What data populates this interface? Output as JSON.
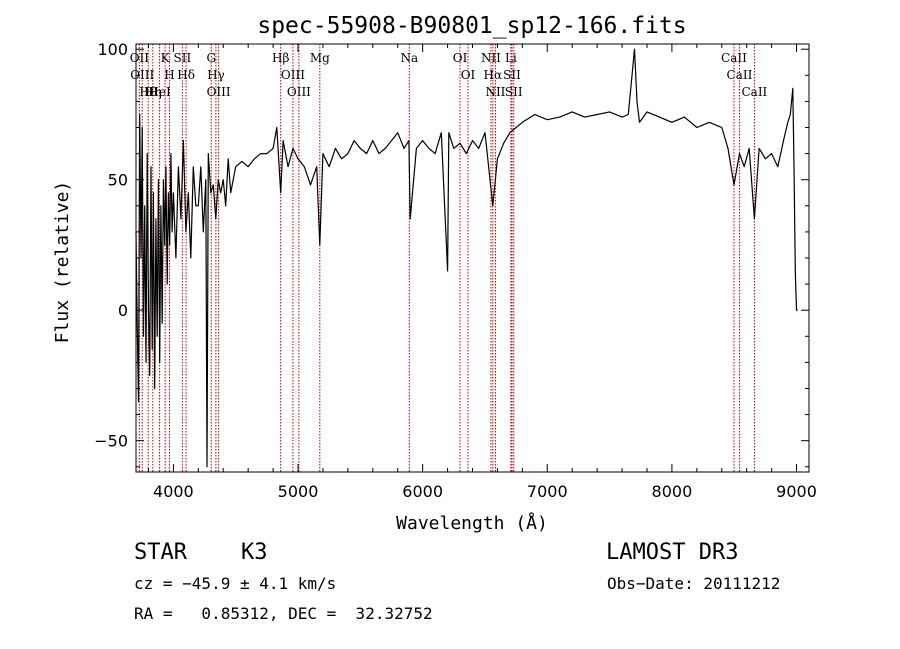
{
  "chart_data": {
    "type": "line",
    "title": "spec-55908-B90801_sp12-166.fits",
    "xlabel": "Wavelength (Å)",
    "ylabel": "Flux (relative)",
    "xlim": [
      3700,
      9100
    ],
    "ylim": [
      -62,
      102
    ],
    "xticks": [
      4000,
      5000,
      6000,
      7000,
      8000,
      9000
    ],
    "yticks": [
      -50,
      0,
      50,
      100
    ],
    "series": [
      {
        "name": "flux",
        "x": [
          3700,
          3710,
          3720,
          3730,
          3740,
          3750,
          3760,
          3770,
          3780,
          3790,
          3800,
          3810,
          3820,
          3830,
          3840,
          3850,
          3860,
          3870,
          3880,
          3890,
          3900,
          3910,
          3920,
          3930,
          3940,
          3950,
          3960,
          3970,
          3980,
          3990,
          4000,
          4020,
          4040,
          4060,
          4080,
          4100,
          4120,
          4140,
          4160,
          4180,
          4200,
          4220,
          4240,
          4260,
          4270,
          4280,
          4300,
          4320,
          4340,
          4360,
          4380,
          4400,
          4420,
          4440,
          4460,
          4480,
          4500,
          4550,
          4600,
          4650,
          4700,
          4750,
          4800,
          4830,
          4861,
          4880,
          4920,
          4960,
          5000,
          5050,
          5100,
          5150,
          5175,
          5200,
          5250,
          5300,
          5350,
          5400,
          5450,
          5500,
          5550,
          5600,
          5650,
          5700,
          5750,
          5800,
          5850,
          5890,
          5900,
          5950,
          6000,
          6050,
          6100,
          6150,
          6200,
          6210,
          6250,
          6300,
          6350,
          6400,
          6450,
          6500,
          6563,
          6600,
          6650,
          6700,
          6750,
          6800,
          6900,
          7000,
          7100,
          7200,
          7300,
          7400,
          7500,
          7600,
          7650,
          7700,
          7720,
          7740,
          7800,
          7900,
          8000,
          8100,
          8200,
          8300,
          8400,
          8450,
          8498,
          8542,
          8580,
          8620,
          8662,
          8700,
          8750,
          8800,
          8850,
          8900,
          8930,
          8950,
          8970,
          8980,
          8990,
          9000,
          9010
        ],
        "values": [
          30,
          -5,
          -35,
          75,
          20,
          70,
          -10,
          40,
          -20,
          60,
          0,
          -25,
          55,
          -15,
          45,
          -30,
          35,
          -10,
          50,
          -20,
          40,
          -5,
          50,
          25,
          55,
          10,
          45,
          25,
          60,
          30,
          45,
          20,
          55,
          35,
          65,
          30,
          45,
          20,
          55,
          40,
          40,
          55,
          30,
          50,
          -60,
          60,
          45,
          48,
          35,
          50,
          45,
          50,
          40,
          58,
          45,
          50,
          55,
          57,
          55,
          58,
          60,
          60,
          62,
          70,
          45,
          65,
          55,
          62,
          58,
          55,
          48,
          55,
          25,
          60,
          55,
          62,
          58,
          60,
          65,
          62,
          60,
          65,
          60,
          62,
          65,
          68,
          62,
          65,
          35,
          62,
          65,
          62,
          60,
          68,
          15,
          68,
          62,
          64,
          60,
          65,
          62,
          68,
          40,
          58,
          64,
          68,
          70,
          72,
          75,
          73,
          74,
          76,
          74,
          75,
          76,
          74,
          75,
          100,
          80,
          72,
          76,
          74,
          72,
          74,
          70,
          72,
          70,
          62,
          48,
          60,
          55,
          62,
          35,
          62,
          58,
          60,
          55,
          66,
          72,
          75,
          85,
          55,
          15,
          0,
          0
        ]
      }
    ],
    "lines": [
      {
        "name": "Hθ",
        "x": 3798
      },
      {
        "name": "OII",
        "x": 3727
      },
      {
        "name": "OIII",
        "x": 3750
      },
      {
        "name": "K",
        "x": 3934
      },
      {
        "name": "HeI",
        "x": 3889
      },
      {
        "name": "Hη",
        "x": 3835
      },
      {
        "name": "H",
        "x": 3969
      },
      {
        "name": "Hδ",
        "x": 4102
      },
      {
        "name": "SII",
        "x": 4072
      },
      {
        "name": "OIII",
        "x": 4363
      },
      {
        "name": "Hγ",
        "x": 4341
      },
      {
        "name": "G",
        "x": 4304
      },
      {
        "name": "Hβ",
        "x": 4861
      },
      {
        "name": "OIII",
        "x": 4959
      },
      {
        "name": "OIII",
        "x": 5007
      },
      {
        "name": "Mg",
        "x": 5175
      },
      {
        "name": "Na",
        "x": 5893
      },
      {
        "name": "OI",
        "x": 6300
      },
      {
        "name": "OI",
        "x": 6364
      },
      {
        "name": "Hα",
        "x": 6563
      },
      {
        "name": "NII",
        "x": 6548
      },
      {
        "name": "NII",
        "x": 6584
      },
      {
        "name": "SII",
        "x": 6717
      },
      {
        "name": "SII",
        "x": 6731
      },
      {
        "name": "Li",
        "x": 6708
      },
      {
        "name": "CaII",
        "x": 8498
      },
      {
        "name": "CaII",
        "x": 8542
      },
      {
        "name": "CaII",
        "x": 8662
      }
    ],
    "line_color": "#c00000"
  },
  "info": {
    "class_label": "STAR",
    "subclass": "K3",
    "survey": "LAMOST DR3",
    "cz": "cz = −45.9 ± 4.1 km/s",
    "obs_date": "Obs−Date: 20111212",
    "radec": "RA =   0.85312, DEC =  32.32752"
  }
}
